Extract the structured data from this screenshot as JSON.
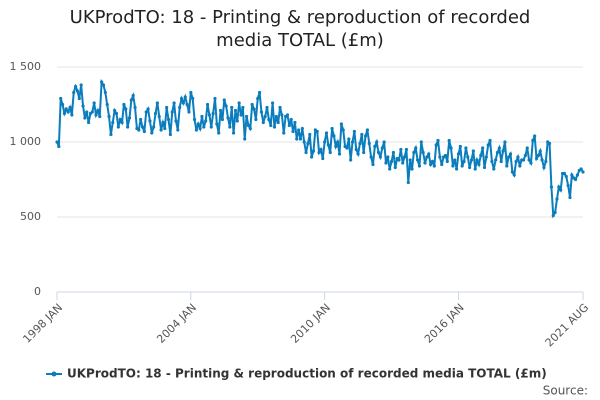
{
  "chart_data": {
    "type": "line",
    "title": "UKProdTO: 18 - Printing & reproduction of recorded media TOTAL (£m)",
    "source": "Source:",
    "x": [
      "1998-01",
      "1998-02",
      "1998-03",
      "1998-04",
      "1998-05",
      "1998-06",
      "1998-07",
      "1998-08",
      "1998-09",
      "1998-10",
      "1998-11",
      "1998-12",
      "1999-01",
      "1999-02",
      "1999-03",
      "1999-04",
      "1999-05",
      "1999-06",
      "1999-07",
      "1999-08",
      "1999-09",
      "1999-10",
      "1999-11",
      "1999-12",
      "2000-01",
      "2000-02",
      "2000-03",
      "2000-04",
      "2000-05",
      "2000-06",
      "2000-07",
      "2000-08",
      "2000-09",
      "2000-10",
      "2000-11",
      "2000-12",
      "2001-01",
      "2001-02",
      "2001-03",
      "2001-04",
      "2001-05",
      "2001-06",
      "2001-07",
      "2001-08",
      "2001-09",
      "2001-10",
      "2001-11",
      "2001-12",
      "2002-01",
      "2002-02",
      "2002-03",
      "2002-04",
      "2002-05",
      "2002-06",
      "2002-07",
      "2002-08",
      "2002-09",
      "2002-10",
      "2002-11",
      "2002-12",
      "2003-01",
      "2003-02",
      "2003-03",
      "2003-04",
      "2003-05",
      "2003-06",
      "2003-07",
      "2003-08",
      "2003-09",
      "2003-10",
      "2003-11",
      "2003-12",
      "2004-01",
      "2004-02",
      "2004-03",
      "2004-04",
      "2004-05",
      "2004-06",
      "2004-07",
      "2004-08",
      "2004-09",
      "2004-10",
      "2004-11",
      "2004-12",
      "2005-01",
      "2005-02",
      "2005-03",
      "2005-04",
      "2005-05",
      "2005-06",
      "2005-07",
      "2005-08",
      "2005-09",
      "2005-10",
      "2005-11",
      "2005-12",
      "2006-01",
      "2006-02",
      "2006-03",
      "2006-04",
      "2006-05",
      "2006-06",
      "2006-07",
      "2006-08",
      "2006-09",
      "2006-10",
      "2006-11",
      "2006-12",
      "2007-01",
      "2007-02",
      "2007-03",
      "2007-04",
      "2007-05",
      "2007-06",
      "2007-07",
      "2007-08",
      "2007-09",
      "2007-10",
      "2007-11",
      "2007-12",
      "2008-01",
      "2008-02",
      "2008-03",
      "2008-04",
      "2008-05",
      "2008-06",
      "2008-07",
      "2008-08",
      "2008-09",
      "2008-10",
      "2008-11",
      "2008-12",
      "2009-01",
      "2009-02",
      "2009-03",
      "2009-04",
      "2009-05",
      "2009-06",
      "2009-07",
      "2009-08",
      "2009-09",
      "2009-10",
      "2009-11",
      "2009-12",
      "2010-01",
      "2010-02",
      "2010-03",
      "2010-04",
      "2010-05",
      "2010-06",
      "2010-07",
      "2010-08",
      "2010-09",
      "2010-10",
      "2010-11",
      "2010-12",
      "2011-01",
      "2011-02",
      "2011-03",
      "2011-04",
      "2011-05",
      "2011-06",
      "2011-07",
      "2011-08",
      "2011-09",
      "2011-10",
      "2011-11",
      "2011-12",
      "2012-01",
      "2012-02",
      "2012-03",
      "2012-04",
      "2012-05",
      "2012-06",
      "2012-07",
      "2012-08",
      "2012-09",
      "2012-10",
      "2012-11",
      "2012-12",
      "2013-01",
      "2013-02",
      "2013-03",
      "2013-04",
      "2013-05",
      "2013-06",
      "2013-07",
      "2013-08",
      "2013-09",
      "2013-10",
      "2013-11",
      "2013-12",
      "2014-01",
      "2014-02",
      "2014-03",
      "2014-04",
      "2014-05",
      "2014-06",
      "2014-07",
      "2014-08",
      "2014-09",
      "2014-10",
      "2014-11",
      "2014-12",
      "2015-01",
      "2015-02",
      "2015-03",
      "2015-04",
      "2015-05",
      "2015-06",
      "2015-07",
      "2015-08",
      "2015-09",
      "2015-10",
      "2015-11",
      "2015-12",
      "2016-01",
      "2016-02",
      "2016-03",
      "2016-04",
      "2016-05",
      "2016-06",
      "2016-07",
      "2016-08",
      "2016-09",
      "2016-10",
      "2016-11",
      "2016-12",
      "2017-01",
      "2017-02",
      "2017-03",
      "2017-04",
      "2017-05",
      "2017-06",
      "2017-07",
      "2017-08",
      "2017-09",
      "2017-10",
      "2017-11",
      "2017-12",
      "2018-01",
      "2018-02",
      "2018-03",
      "2018-04",
      "2018-05",
      "2018-06",
      "2018-07",
      "2018-08",
      "2018-09",
      "2018-10",
      "2018-11",
      "2018-12",
      "2019-01",
      "2019-02",
      "2019-03",
      "2019-04",
      "2019-05",
      "2019-06",
      "2019-07",
      "2019-08",
      "2019-09",
      "2019-10",
      "2019-11",
      "2019-12",
      "2020-01",
      "2020-02",
      "2020-03",
      "2020-04",
      "2020-05",
      "2020-06",
      "2020-07",
      "2020-08",
      "2020-09",
      "2020-10",
      "2020-11",
      "2020-12",
      "2021-01",
      "2021-02",
      "2021-03",
      "2021-04",
      "2021-05",
      "2021-06",
      "2021-07",
      "2021-08"
    ],
    "series": [
      {
        "name": "UKProdTO: 18 - Printing & reproduction of recorded media TOTAL (£m)",
        "color": "#0b7dbd",
        "values": [
          1000,
          970,
          1290,
          1250,
          1190,
          1220,
          1200,
          1230,
          1180,
          1330,
          1370,
          1340,
          1290,
          1380,
          1240,
          1160,
          1200,
          1130,
          1190,
          1200,
          1260,
          1180,
          1210,
          1170,
          1400,
          1380,
          1330,
          1250,
          1170,
          1050,
          1130,
          1210,
          1190,
          1100,
          1150,
          1130,
          1250,
          1220,
          1100,
          1160,
          1280,
          1310,
          1230,
          1090,
          1080,
          1150,
          1100,
          1070,
          1200,
          1220,
          1140,
          1060,
          1100,
          1190,
          1260,
          1170,
          1080,
          1130,
          1090,
          1230,
          1150,
          1050,
          1200,
          1260,
          1140,
          1080,
          1230,
          1290,
          1260,
          1300,
          1250,
          1200,
          1330,
          1290,
          1150,
          1080,
          1120,
          1090,
          1170,
          1100,
          1140,
          1250,
          1180,
          1100,
          1190,
          1290,
          1120,
          1060,
          1210,
          1150,
          1280,
          1240,
          1160,
          1100,
          1230,
          1060,
          1210,
          1140,
          1260,
          1180,
          1230,
          1020,
          1170,
          1110,
          1090,
          1250,
          1220,
          1150,
          1290,
          1330,
          1200,
          1130,
          1170,
          1230,
          1150,
          1110,
          1260,
          1100,
          1170,
          1130,
          1230,
          1180,
          1060,
          1170,
          1180,
          1110,
          1150,
          1070,
          1130,
          1020,
          1080,
          1020,
          1090,
          1000,
          930,
          990,
          1050,
          900,
          940,
          1080,
          1070,
          930,
          950,
          890,
          1000,
          1060,
          980,
          930,
          1090,
          1040,
          970,
          1000,
          920,
          1120,
          1080,
          970,
          960,
          1020,
          880,
          1000,
          1070,
          950,
          920,
          990,
          1050,
          930,
          1040,
          1080,
          990,
          900,
          850,
          970,
          1000,
          930,
          900,
          960,
          1000,
          860,
          900,
          820,
          870,
          930,
          830,
          890,
          880,
          950,
          860,
          900,
          950,
          730,
          880,
          820,
          930,
          960,
          880,
          840,
          1000,
          930,
          860,
          900,
          920,
          850,
          870,
          840,
          980,
          1010,
          900,
          850,
          900,
          910,
          870,
          1010,
          960,
          840,
          880,
          820,
          920,
          970,
          840,
          870,
          960,
          900,
          830,
          880,
          940,
          820,
          880,
          850,
          910,
          960,
          830,
          900,
          980,
          1010,
          870,
          820,
          880,
          930,
          960,
          870,
          940,
          1000,
          840,
          900,
          920,
          800,
          780,
          870,
          900,
          840,
          880,
          880,
          910,
          960,
          880,
          860,
          1010,
          1040,
          890,
          910,
          940,
          880,
          830,
          870,
          1000,
          990,
          700,
          510,
          530,
          620,
          700,
          680,
          790,
          790,
          770,
          710,
          630,
          780,
          760,
          750,
          780,
          810,
          820,
          800
        ]
      }
    ],
    "xlim": [
      "1998-01",
      "2021-08"
    ],
    "xticks": [
      {
        "value": "1998-01",
        "label": "1998 JAN"
      },
      {
        "value": "2004-01",
        "label": "2004 JAN"
      },
      {
        "value": "2010-01",
        "label": "2010 JAN"
      },
      {
        "value": "2016-01",
        "label": "2016 JAN"
      },
      {
        "value": "2021-08",
        "label": "2021 AUG"
      }
    ],
    "ylim": [
      0,
      1500
    ],
    "yticks": [
      0,
      500,
      {
        "value": 1000,
        "label": "1 000"
      },
      {
        "value": 1500,
        "label": "1 500"
      }
    ],
    "grid": true
  }
}
